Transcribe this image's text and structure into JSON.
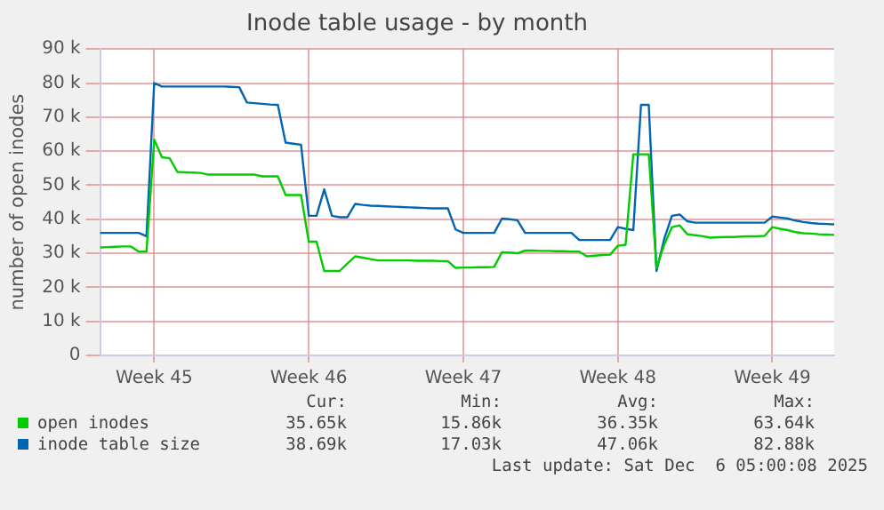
{
  "chart_data": {
    "type": "line",
    "title": "Inode table usage - by month",
    "ylabel": "number of open inodes",
    "categories": [
      null,
      null,
      null,
      null,
      null,
      null,
      null,
      "Week 45",
      null,
      null,
      null,
      null,
      null,
      null,
      null,
      null,
      null,
      null,
      null,
      null,
      null,
      null,
      null,
      null,
      null,
      null,
      null,
      "Week 46",
      null,
      null,
      null,
      null,
      null,
      null,
      null,
      null,
      null,
      null,
      null,
      null,
      null,
      null,
      null,
      null,
      null,
      null,
      null,
      "Week 47",
      null,
      null,
      null,
      null,
      null,
      null,
      null,
      null,
      null,
      null,
      null,
      null,
      null,
      null,
      null,
      null,
      null,
      null,
      null,
      "Week 48",
      null,
      null,
      null,
      null,
      null,
      null,
      null,
      null,
      null,
      null,
      null,
      null,
      null,
      null,
      null,
      null,
      null,
      null,
      null,
      "Week 49",
      null,
      null,
      null,
      null,
      null,
      null,
      null,
      null
    ],
    "ylim": [
      0,
      90000
    ],
    "yticks": [
      0,
      {
        "value": 10000,
        "label": "10 k"
      },
      {
        "value": 20000,
        "label": "20 k"
      },
      {
        "value": 30000,
        "label": "30 k"
      },
      {
        "value": 40000,
        "label": "40 k"
      },
      {
        "value": 50000,
        "label": "50 k"
      },
      {
        "value": 60000,
        "label": "60 k"
      },
      {
        "value": 70000,
        "label": "70 k"
      },
      {
        "value": 80000,
        "label": "80 k"
      },
      {
        "value": 90000,
        "label": "90 k"
      }
    ],
    "grid": true,
    "legend": "bottom",
    "series": [
      {
        "name": "open inodes",
        "color": "#00cc00",
        "values": [
          31700,
          31800,
          31900,
          32000,
          32000,
          30500,
          30500,
          63400,
          58200,
          57900,
          53900,
          53800,
          53700,
          53600,
          53100,
          53100,
          53100,
          53100,
          53100,
          53100,
          53100,
          52600,
          52600,
          52600,
          47100,
          47100,
          47100,
          33400,
          33400,
          24800,
          24800,
          24800,
          27000,
          29100,
          28700,
          28300,
          27900,
          27900,
          27900,
          27900,
          27900,
          27800,
          27800,
          27800,
          27700,
          27700,
          25700,
          25800,
          25800,
          25900,
          25900,
          26000,
          30300,
          30200,
          30000,
          30800,
          30800,
          30700,
          30700,
          30600,
          30600,
          30500,
          30500,
          29100,
          29300,
          29500,
          29600,
          32200,
          32500,
          59100,
          59100,
          59100,
          25700,
          32500,
          37700,
          38200,
          35600,
          35300,
          35000,
          34600,
          34700,
          34800,
          34800,
          34900,
          35000,
          35000,
          35100,
          37700,
          37200,
          36800,
          36200,
          35900,
          35800,
          35600,
          35500,
          35400
        ]
      },
      {
        "name": "inode table size",
        "color": "#0066b3",
        "values": [
          36000,
          36000,
          36000,
          36000,
          36000,
          36000,
          35000,
          80000,
          79000,
          79000,
          79000,
          79000,
          79000,
          79000,
          79000,
          79000,
          79000,
          78900,
          78800,
          74300,
          74100,
          73900,
          73700,
          73600,
          62500,
          62200,
          61900,
          41000,
          41000,
          48800,
          41000,
          40600,
          40600,
          44500,
          44200,
          44000,
          43900,
          43800,
          43700,
          43600,
          43500,
          43400,
          43300,
          43200,
          43200,
          43200,
          37000,
          36000,
          36000,
          36000,
          36000,
          36000,
          40200,
          40000,
          39700,
          36000,
          36000,
          36000,
          36000,
          36000,
          36000,
          36000,
          33900,
          33900,
          33900,
          33900,
          33900,
          37700,
          37200,
          36800,
          73600,
          73600,
          24800,
          34200,
          41000,
          41400,
          39400,
          39000,
          39000,
          39000,
          39000,
          39000,
          39000,
          39000,
          39000,
          39000,
          39000,
          40800,
          40500,
          40200,
          39600,
          39200,
          38900,
          38700,
          38600,
          38500
        ]
      }
    ],
    "annotations": [
      "Cur:",
      "Min:",
      "Avg:",
      "Max:",
      "35.65k",
      "15.86k",
      "36.35k",
      "63.64k",
      "38.69k",
      "17.03k",
      "47.06k",
      "82.88k",
      "Last update: Sat Dec  6 05:00:08 2025"
    ]
  }
}
